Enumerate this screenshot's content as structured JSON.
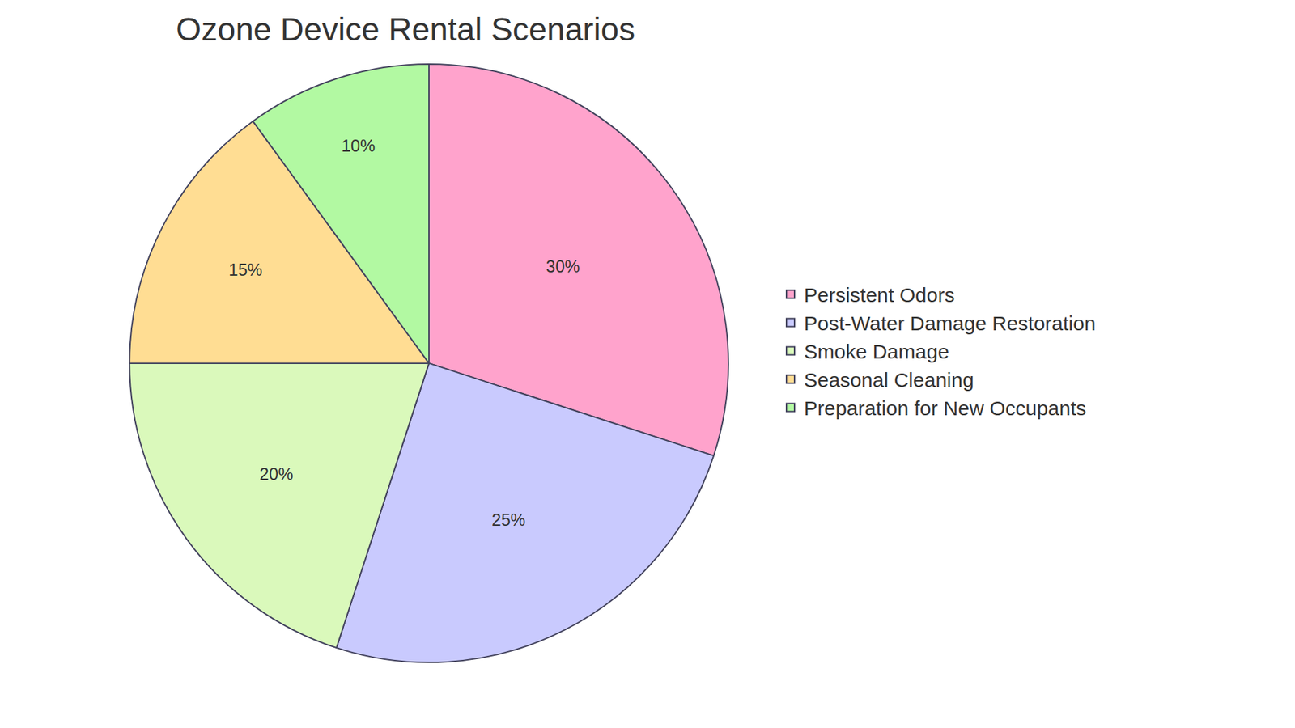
{
  "chart_data": {
    "type": "pie",
    "title": "Ozone Device Rental Scenarios",
    "categories": [
      "Persistent Odors",
      "Post-Water Damage Restoration",
      "Smoke Damage",
      "Seasonal Cleaning",
      "Preparation for New Occupants"
    ],
    "values": [
      30,
      25,
      20,
      15,
      10
    ],
    "value_labels": [
      "30%",
      "25%",
      "20%",
      "15%",
      "10%"
    ],
    "colors": [
      "#FFA3CC",
      "#C9CAFE",
      "#DAF9BB",
      "#FFDD93",
      "#B2F9A2"
    ],
    "data_labels": true,
    "legend": "right"
  }
}
